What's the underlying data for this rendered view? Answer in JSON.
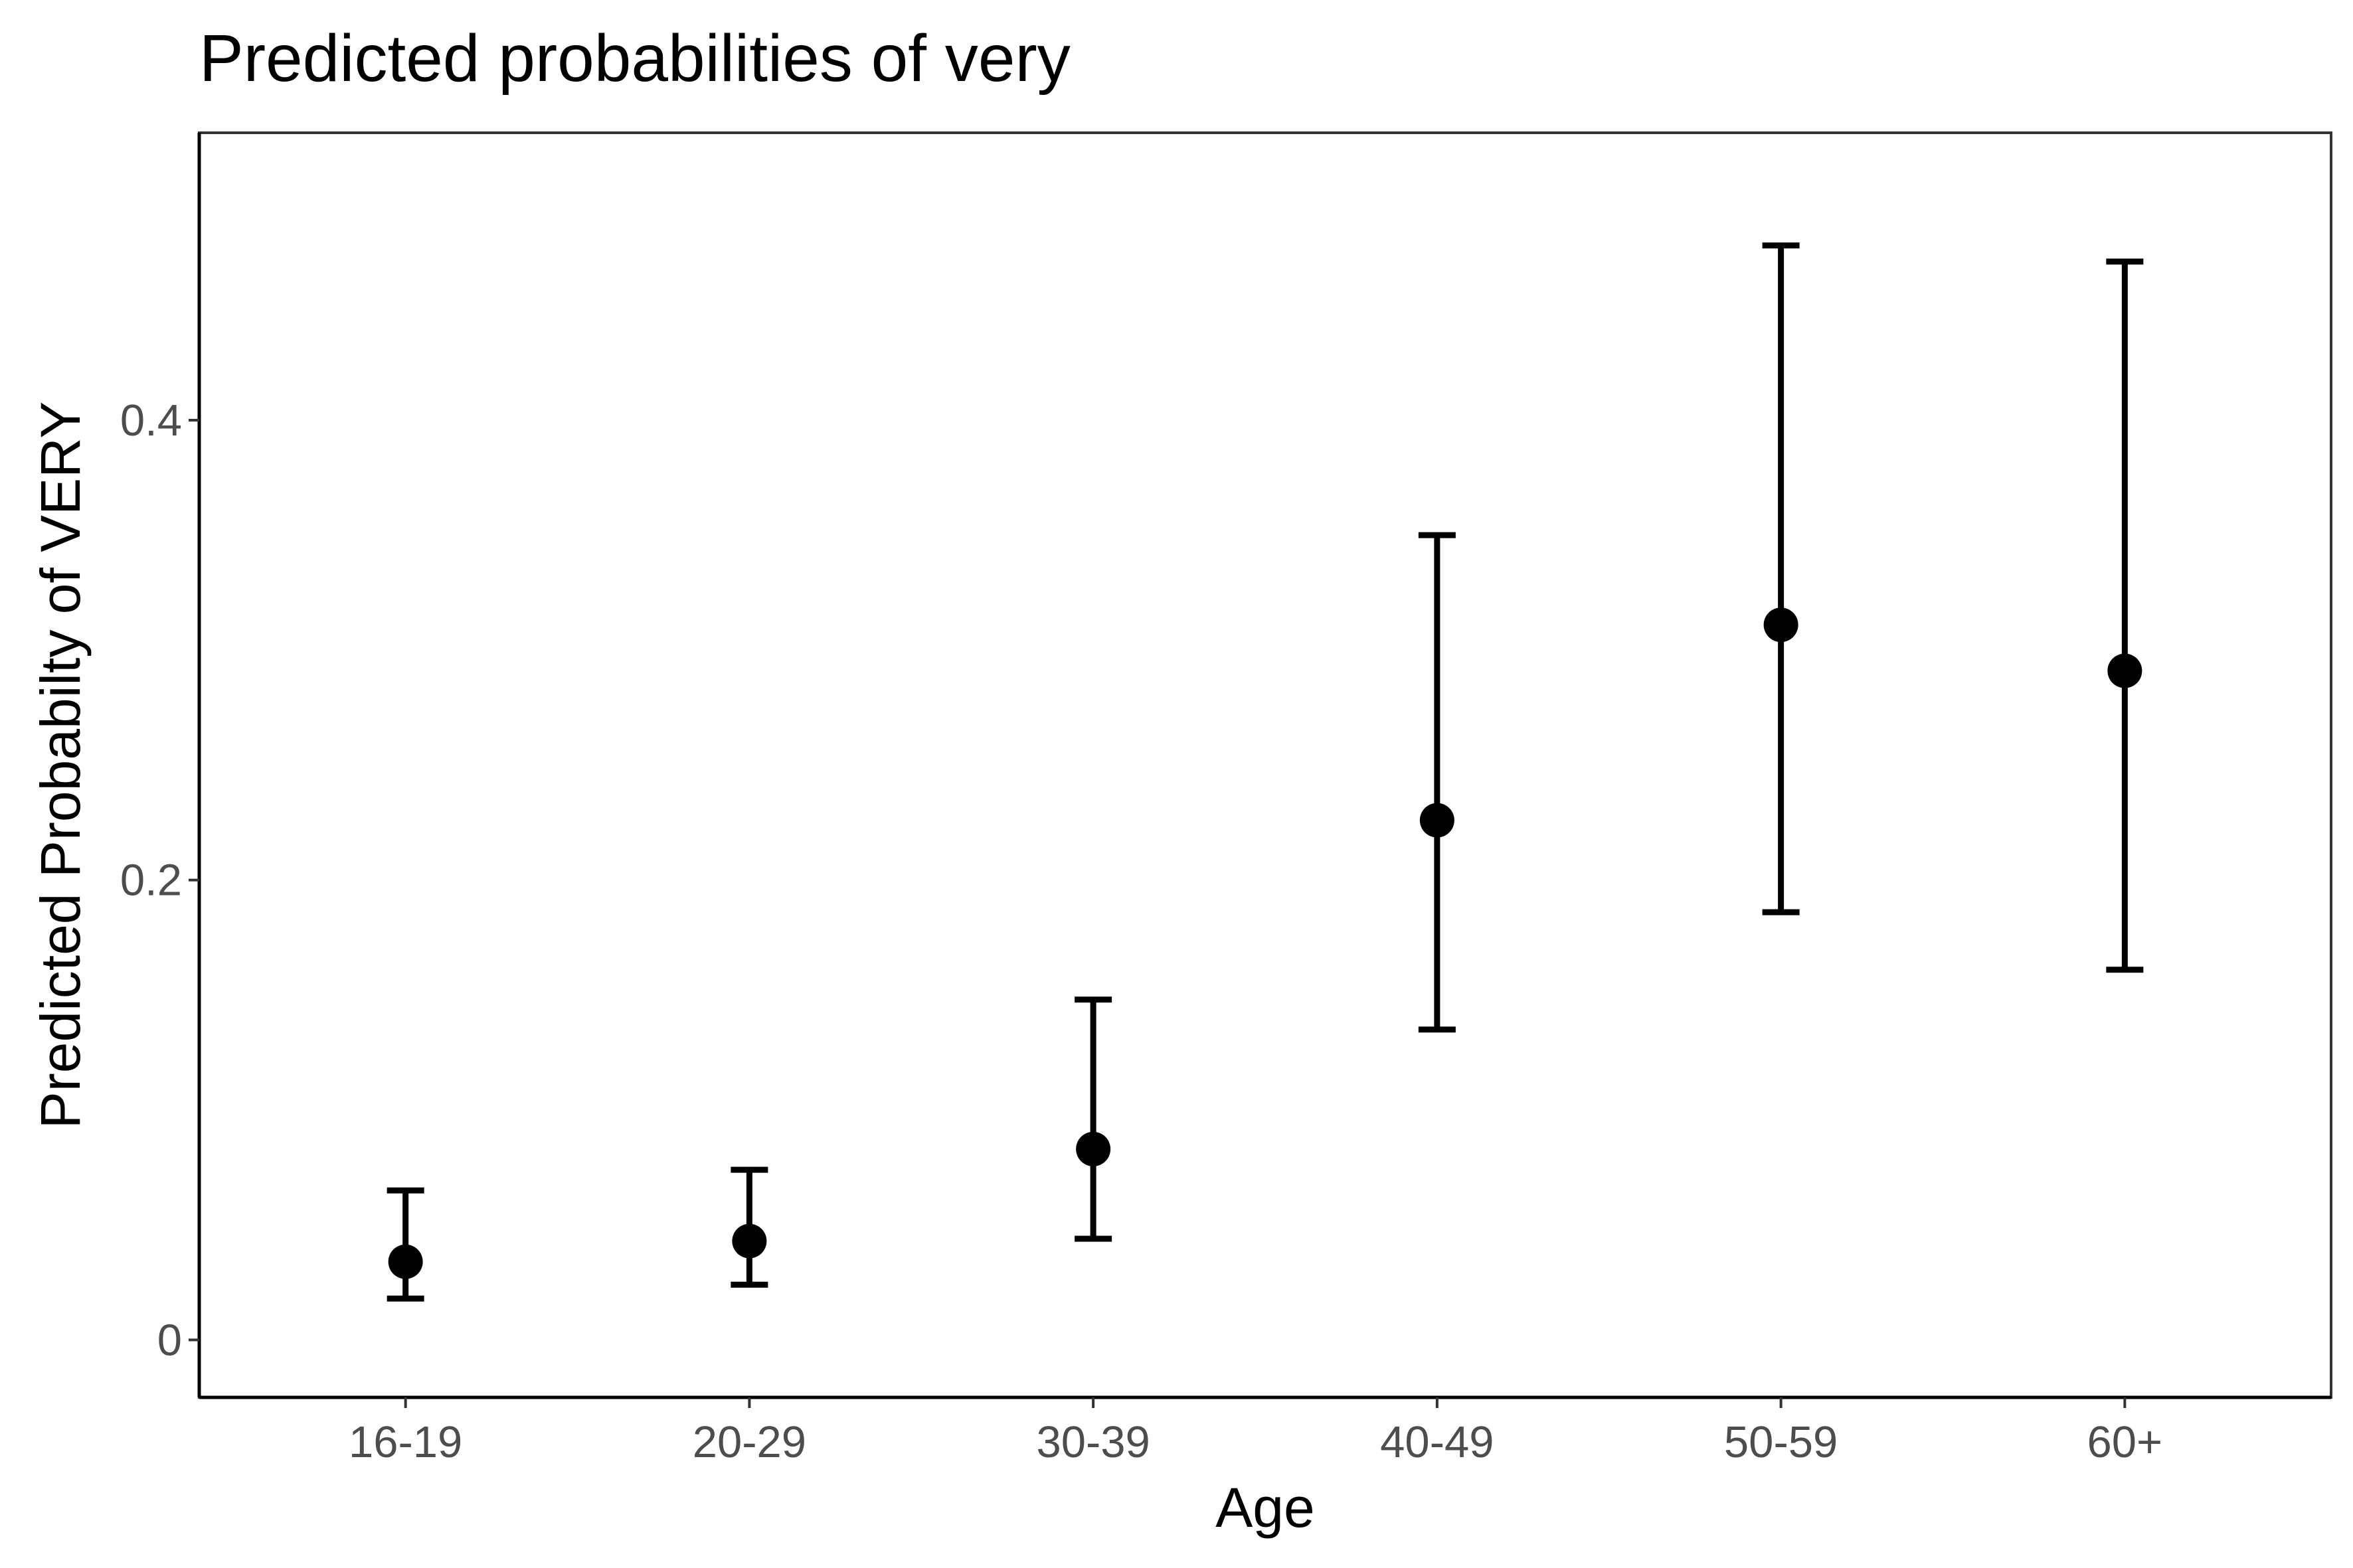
{
  "chart_data": {
    "type": "scatter",
    "title": "Predicted probabilities of very",
    "xlabel": "Age",
    "ylabel": "Predicted Probabilty of VERY",
    "categories": [
      "16-19",
      "20-29",
      "30-39",
      "40-49",
      "50-59",
      "60+"
    ],
    "series": [
      {
        "values": [
          0.034,
          0.043,
          0.083,
          0.226,
          0.311,
          0.291
        ],
        "lower": [
          0.018,
          0.024,
          0.044,
          0.135,
          0.186,
          0.161
        ],
        "upper": [
          0.065,
          0.074,
          0.148,
          0.35,
          0.476,
          0.469
        ]
      }
    ],
    "ylim": [
      -0.025,
      0.525
    ],
    "yticks": [
      0,
      0.2,
      0.4
    ],
    "ytick_labels": [
      "0",
      "0.2",
      "0.4"
    ],
    "grid": false,
    "legend": "none",
    "colors": {
      "points": "#000000",
      "error_bars": "#000000",
      "tick_labels": "#4d4d4d",
      "text": "#000000",
      "background": "#ffffff"
    }
  }
}
